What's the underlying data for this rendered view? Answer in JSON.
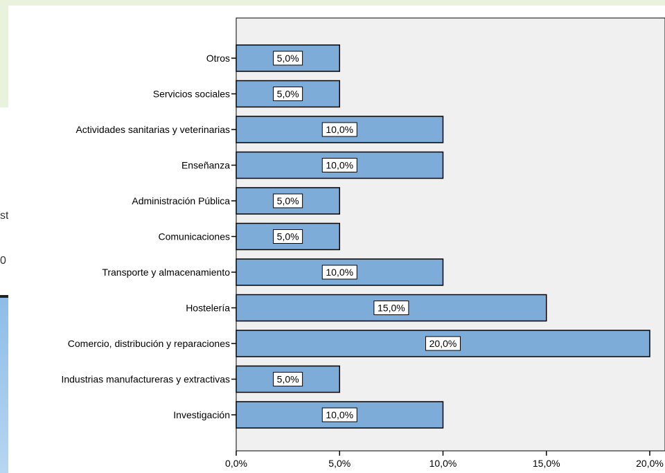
{
  "background_fragments": [
    "st",
    "0"
  ],
  "chart_data": {
    "type": "bar",
    "orientation": "horizontal",
    "categories": [
      "Otros",
      "Servicios sociales",
      "Actividades sanitarias y veterinarias",
      "Enseñanza",
      "Administración Pública",
      "Comunicaciones",
      "Transporte y almacenamiento",
      "Hostelería",
      "Comercio, distribución y reparaciones",
      "Industrias manufactureras y extractivas",
      "Investigación"
    ],
    "values": [
      5,
      5,
      10,
      10,
      5,
      5,
      10,
      15,
      20,
      5,
      10
    ],
    "data_labels": [
      "5,0%",
      "5,0%",
      "10,0%",
      "10,0%",
      "5,0%",
      "5,0%",
      "10,0%",
      "15,0%",
      "20,0%",
      "5,0%",
      "10,0%"
    ],
    "xlim": [
      0,
      20
    ],
    "x_ticks": [
      0,
      5,
      10,
      15,
      20
    ],
    "x_tick_labels": [
      "0,0%",
      "5,0%",
      "10,0%",
      "15,0%",
      "20,0%"
    ],
    "grid": false,
    "colors": {
      "bar_fill": "#7eacd9",
      "bar_stroke": "#000000",
      "plot_background": "#f0f0f0",
      "label_box": "#ffffff"
    }
  }
}
